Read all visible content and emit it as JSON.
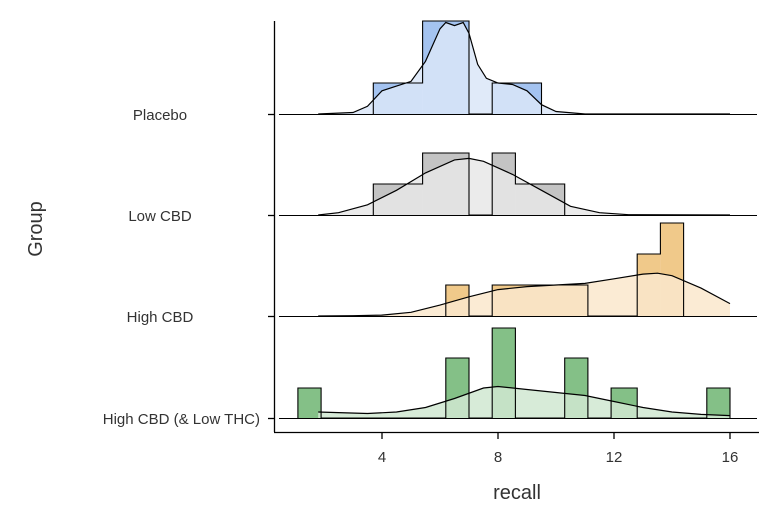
{
  "chart_data": {
    "type": "ridgeline-histogram-density",
    "xlabel": "recall",
    "ylabel": "Group",
    "x_ticks": [
      4,
      8,
      12,
      16
    ],
    "xlim": [
      0.4,
      17
    ],
    "groups": [
      {
        "name": "Placebo",
        "fill": "#a4c3f0",
        "density_fill": "#dbe6f8",
        "bins": [
          [
            3.7,
            5.4,
            1
          ],
          [
            5.4,
            7.0,
            3
          ],
          [
            7.0,
            7.8,
            0
          ],
          [
            7.8,
            9.5,
            1
          ]
        ],
        "density": [
          [
            1.8,
            0.0
          ],
          [
            3.0,
            0.05
          ],
          [
            3.5,
            0.25
          ],
          [
            4.0,
            0.75
          ],
          [
            4.5,
            0.9
          ],
          [
            5.0,
            1.05
          ],
          [
            5.5,
            1.7
          ],
          [
            6.0,
            2.75
          ],
          [
            6.2,
            2.95
          ],
          [
            6.5,
            2.85
          ],
          [
            6.8,
            2.95
          ],
          [
            7.0,
            2.6
          ],
          [
            7.3,
            1.6
          ],
          [
            7.6,
            1.15
          ],
          [
            8.0,
            1.0
          ],
          [
            8.5,
            0.95
          ],
          [
            9.0,
            0.75
          ],
          [
            9.5,
            0.3
          ],
          [
            10.0,
            0.08
          ],
          [
            11.0,
            0.0
          ],
          [
            16.0,
            0.0
          ]
        ]
      },
      {
        "name": "Low CBD",
        "fill": "#c4c4c4",
        "density_fill": "#e8e8e8",
        "bins": [
          [
            3.7,
            5.4,
            1
          ],
          [
            5.4,
            7.0,
            2
          ],
          [
            7.0,
            7.8,
            0
          ],
          [
            7.8,
            8.6,
            2
          ],
          [
            8.6,
            10.3,
            1
          ]
        ],
        "density": [
          [
            1.8,
            0.0
          ],
          [
            2.5,
            0.08
          ],
          [
            3.5,
            0.35
          ],
          [
            4.5,
            0.85
          ],
          [
            5.5,
            1.45
          ],
          [
            6.5,
            1.9
          ],
          [
            7.0,
            1.95
          ],
          [
            7.5,
            1.85
          ],
          [
            8.5,
            1.4
          ],
          [
            9.5,
            0.85
          ],
          [
            10.5,
            0.3
          ],
          [
            11.5,
            0.08
          ],
          [
            12.5,
            0.01
          ],
          [
            16.0,
            0.0
          ]
        ]
      },
      {
        "name": "High CBD",
        "fill": "#f0c98a",
        "density_fill": "#fae8cc",
        "bins": [
          [
            6.2,
            7.0,
            1
          ],
          [
            7.0,
            7.8,
            0
          ],
          [
            7.8,
            11.1,
            1
          ],
          [
            11.1,
            12.8,
            0
          ],
          [
            12.8,
            13.6,
            2
          ],
          [
            13.6,
            14.4,
            3
          ]
        ],
        "density": [
          [
            1.8,
            0.0
          ],
          [
            3.0,
            0.01
          ],
          [
            4.0,
            0.03
          ],
          [
            5.0,
            0.12
          ],
          [
            6.0,
            0.35
          ],
          [
            7.0,
            0.62
          ],
          [
            8.0,
            0.85
          ],
          [
            9.0,
            0.95
          ],
          [
            10.0,
            1.0
          ],
          [
            11.0,
            1.05
          ],
          [
            12.0,
            1.2
          ],
          [
            13.0,
            1.35
          ],
          [
            13.5,
            1.38
          ],
          [
            14.0,
            1.3
          ],
          [
            15.0,
            0.9
          ],
          [
            16.0,
            0.4
          ]
        ]
      },
      {
        "name": "High CBD (& Low THC)",
        "fill": "#84c087",
        "density_fill": "#d0e7d1",
        "bins": [
          [
            1.1,
            1.9,
            1
          ],
          [
            1.9,
            6.2,
            0
          ],
          [
            6.2,
            7.0,
            2
          ],
          [
            7.0,
            7.8,
            0
          ],
          [
            7.8,
            8.6,
            3
          ],
          [
            8.6,
            10.3,
            0
          ],
          [
            10.3,
            11.1,
            2
          ],
          [
            11.1,
            11.9,
            0
          ],
          [
            11.9,
            12.8,
            1
          ],
          [
            12.8,
            15.2,
            0
          ],
          [
            15.2,
            16.0,
            1
          ]
        ],
        "density": [
          [
            1.8,
            0.2
          ],
          [
            2.5,
            0.18
          ],
          [
            3.5,
            0.15
          ],
          [
            4.5,
            0.2
          ],
          [
            5.5,
            0.35
          ],
          [
            6.5,
            0.65
          ],
          [
            7.5,
            1.0
          ],
          [
            8.0,
            1.05
          ],
          [
            9.0,
            0.95
          ],
          [
            10.0,
            0.85
          ],
          [
            11.0,
            0.75
          ],
          [
            12.0,
            0.55
          ],
          [
            13.0,
            0.35
          ],
          [
            14.0,
            0.2
          ],
          [
            15.0,
            0.12
          ],
          [
            16.0,
            0.08
          ]
        ]
      }
    ]
  }
}
